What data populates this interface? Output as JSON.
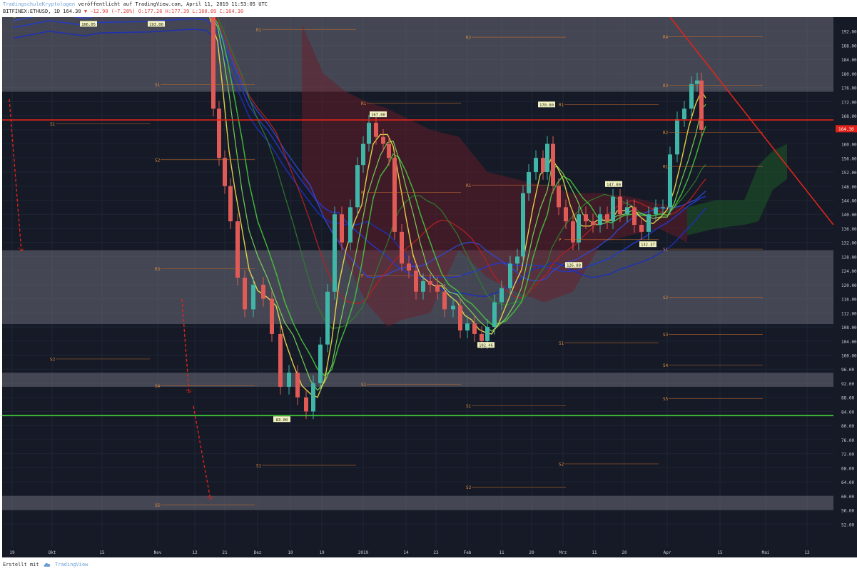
{
  "header": {
    "author": "TradingschuleKryptologen",
    "published_text": "veröffentlicht auf TradingView.com, April 11, 2019 11:53:05 UTC",
    "symbol": "BITFINEX:ETHUSD, 1D",
    "last_price": "164.30",
    "change": "−12.90 (−7.28%)",
    "ohlc": "O:177.26 H:177.39 L:160.89 C:164.30"
  },
  "chart_data": {
    "type": "candlestick",
    "price_axis": {
      "ylim": [
        48,
        196
      ],
      "ticks": [
        "192.00",
        "188.00",
        "184.00",
        "180.00",
        "176.00",
        "172.00",
        "168.00",
        "164.00",
        "160.00",
        "156.00",
        "152.00",
        "148.00",
        "144.00",
        "140.00",
        "136.00",
        "132.00",
        "128.00",
        "124.00",
        "120.00",
        "116.00",
        "112.00",
        "108.00",
        "104.00",
        "100.00",
        "96.00",
        "92.00",
        "88.00",
        "84.00",
        "80.00",
        "76.00",
        "72.00",
        "68.00",
        "64.00",
        "60.00",
        "56.00",
        "52.00"
      ],
      "current_price_label": "164.30"
    },
    "time_axis": {
      "ticks": [
        "19",
        "Okt",
        "15",
        "Nov",
        "12",
        "21",
        "Dez",
        "10",
        "19",
        "2019",
        "14",
        "23",
        "Feb",
        "11",
        "20",
        "Mrz",
        "11",
        "20",
        "Apr",
        "15",
        "Mai",
        "13"
      ]
    },
    "grey_zones": [
      [
        174.8,
        196
      ],
      [
        108.8,
        129.8
      ],
      [
        91,
        95
      ],
      [
        56,
        60
      ]
    ],
    "horizontal_levels": [
      {
        "price": 166.8,
        "color": "#e0241b"
      },
      {
        "price": 82.8,
        "color": "#3fd33a"
      }
    ],
    "price_labels": [
      {
        "text": "166.05",
        "price": 194.1
      },
      {
        "text": "193.06",
        "price": 194.1
      },
      {
        "text": "83.00",
        "price": 81.8
      },
      {
        "text": "167.00",
        "price": 168.4
      },
      {
        "text": "170.00",
        "price": 171.2
      },
      {
        "text": "147.00",
        "price": 148.6
      },
      {
        "text": "132.37",
        "price": 131.5
      },
      {
        "text": "126.88",
        "price": 125.6
      },
      {
        "text": "102.46",
        "price": 102.9
      }
    ],
    "pivot_labels": [
      {
        "text": "R1",
        "price": 192.5
      },
      {
        "text": "S1",
        "price": 176.8
      },
      {
        "text": "S1",
        "price": 165.7
      },
      {
        "text": "S2",
        "price": 155.5
      },
      {
        "text": "R3",
        "price": 124.5
      },
      {
        "text": "S2",
        "price": 98.9
      },
      {
        "text": "S4",
        "price": 91.3
      },
      {
        "text": "S5",
        "price": 57.4
      },
      {
        "text": "S1",
        "price": 68.7
      },
      {
        "text": "R1",
        "price": 171.6
      },
      {
        "text": "P",
        "price": 146.2
      },
      {
        "text": "P",
        "price": 122.6
      },
      {
        "text": "S1",
        "price": 91.7
      },
      {
        "text": "R2",
        "price": 190.3
      },
      {
        "text": "R1",
        "price": 148.3
      },
      {
        "text": "S1",
        "price": 85.6
      },
      {
        "text": "S2",
        "price": 62.5
      },
      {
        "text": "R1",
        "price": 171.2
      },
      {
        "text": "P",
        "price": 132.8
      },
      {
        "text": "S1",
        "price": 103.5
      },
      {
        "text": "S2",
        "price": 69.1
      },
      {
        "text": "R4",
        "price": 190.4
      },
      {
        "text": "R3",
        "price": 176.6
      },
      {
        "text": "R2",
        "price": 163.3
      },
      {
        "text": "R1",
        "price": 153.6
      },
      {
        "text": "S1",
        "price": 130.1
      },
      {
        "text": "S2",
        "price": 116.4
      },
      {
        "text": "S3",
        "price": 105.9
      },
      {
        "text": "S4",
        "price": 97.2
      },
      {
        "text": "S5",
        "price": 87.6
      }
    ]
  },
  "footer": {
    "created_with": "Erstellt mit",
    "brand": "TradingView"
  }
}
